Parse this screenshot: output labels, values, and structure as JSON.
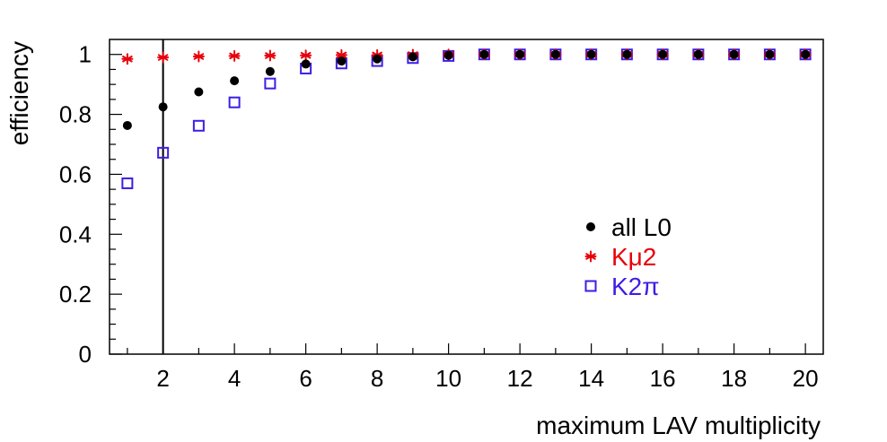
{
  "chart_data": {
    "type": "scatter",
    "xlabel": "maximum LAV multiplicity",
    "ylabel": "efficiency",
    "xlim": [
      0.5,
      20.5
    ],
    "ylim": [
      0,
      1.05
    ],
    "x_ticks": [
      "2",
      "4",
      "6",
      "8",
      "10",
      "12",
      "14",
      "16",
      "18",
      "20"
    ],
    "y_ticks": [
      "0",
      "0.2",
      "0.4",
      "0.6",
      "0.8",
      "1"
    ],
    "x": [
      1,
      2,
      3,
      4,
      5,
      6,
      7,
      8,
      9,
      10,
      11,
      12,
      13,
      14,
      15,
      16,
      17,
      18,
      19,
      20
    ],
    "vertical_line_x": 2,
    "grid": false,
    "legend_position": "center-right",
    "series": [
      {
        "name": "all L0",
        "marker": "filled-circle",
        "color": "#000000",
        "values": [
          0.763,
          0.825,
          0.875,
          0.912,
          0.943,
          0.968,
          0.978,
          0.985,
          0.992,
          0.997,
          1.0,
          1.0,
          1.0,
          1.0,
          1.0,
          1.0,
          1.0,
          1.0,
          1.0,
          1.0
        ]
      },
      {
        "name": "Kμ2",
        "marker": "asterisk",
        "color": "#e8000b",
        "values": [
          0.985,
          0.99,
          0.993,
          0.995,
          0.996,
          0.997,
          0.998,
          0.998,
          0.999,
          1.0,
          1.0,
          1.0,
          1.0,
          1.0,
          1.0,
          1.0,
          1.0,
          1.0,
          1.0,
          1.0
        ]
      },
      {
        "name": "K2π",
        "marker": "open-square",
        "color": "#3c1ee6",
        "values": [
          0.57,
          0.672,
          0.762,
          0.84,
          0.903,
          0.953,
          0.97,
          0.978,
          0.988,
          0.995,
          1.0,
          1.0,
          1.0,
          1.0,
          1.0,
          1.0,
          1.0,
          1.0,
          1.0,
          1.0
        ]
      }
    ]
  }
}
